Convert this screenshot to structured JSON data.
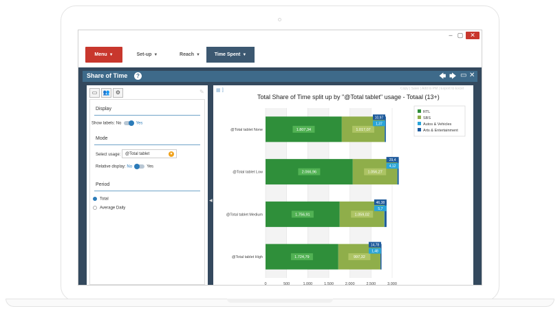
{
  "window": {
    "min_label": "–",
    "max_label": "▢",
    "close_label": "✕"
  },
  "nav": {
    "menu": "Menu",
    "setup": "Set-up",
    "reach": "Reach",
    "time_spent": "Time Spent",
    "dropdown_arrow": "▼"
  },
  "panel": {
    "title": "Share of Time",
    "help": "?",
    "icons": {
      "back": "🡄",
      "forward": "🡆",
      "maximize": "▭",
      "close": "✕"
    }
  },
  "left": {
    "tabs": [
      "▭",
      "👥",
      "⚙"
    ],
    "display": {
      "title": "Display",
      "show_labels_label": "Show labels:",
      "no": "No",
      "yes": "Yes"
    },
    "mode": {
      "title": "Mode",
      "select_usage_label": "Select usage:",
      "select_usage_value": "@Total tablet",
      "relative_display_label": "Relative display:",
      "no": "No",
      "yes": "Yes"
    },
    "period": {
      "title": "Period",
      "options": [
        "Total",
        "Average Daily"
      ],
      "selected": "Total"
    }
  },
  "chart_top_links": "Copy | Save | Add to PM | Export to Excel",
  "chart_data": {
    "type": "bar",
    "orientation": "horizontal",
    "stacked": true,
    "title": "Total Share of Time split up by \"@Total tablet\" usage - Totaal (13+)",
    "categories": [
      "@Total tablet None",
      "@Total tablet Low",
      "@Total tablet Medium",
      "@Total tablet High"
    ],
    "series": [
      {
        "name": "RTL",
        "color": "#2f8f3a",
        "values": [
          1807.34,
          2066.96,
          1756.91,
          1724.79
        ],
        "labels": [
          "1.807,34",
          "2.066,96",
          "1.756,91",
          "1.724,79"
        ]
      },
      {
        "name": "SBS",
        "color": "#8fae4a",
        "values": [
          1017.07,
          1056.27,
          1059.02,
          997.32
        ],
        "labels": [
          "1.017,07",
          "1.056,27",
          "1.059,02",
          "997,32"
        ]
      },
      {
        "name": "Autos & Vehicles",
        "color": "#2aa4d8",
        "values": [
          1.37,
          4.12,
          5.7,
          1.48
        ],
        "labels": [
          "1,37",
          "4,12",
          "5,7",
          "1,48"
        ]
      },
      {
        "name": "Arts & Entertainment",
        "color": "#1e5a9c",
        "values": [
          10.97,
          29.4,
          46.38,
          14.78
        ],
        "labels": [
          "10,97",
          "29,4",
          "46,38",
          "14,78"
        ]
      }
    ],
    "xlim": [
      0,
      3000
    ],
    "xticks": [
      0,
      500,
      1000,
      1500,
      2000,
      2500,
      3000
    ],
    "xtick_labels": [
      "0",
      "500",
      "1.000",
      "1.500",
      "2.000",
      "2.500",
      "3.000"
    ],
    "legend_position": "top-right",
    "grid": true
  }
}
